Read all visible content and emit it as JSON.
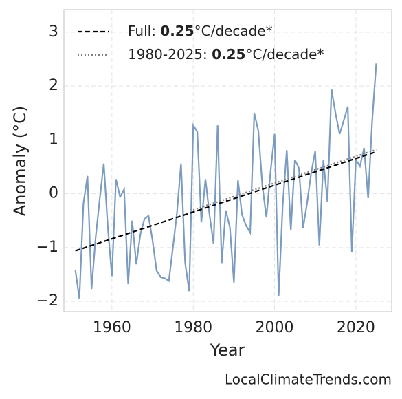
{
  "chart_data": {
    "type": "line",
    "xlabel": "Year",
    "ylabel": "Anomaly (°C)",
    "source": "LocalClimateTrends.com",
    "xlim": [
      1948.2,
      2028.8
    ],
    "ylim": [
      -2.19,
      3.42
    ],
    "xticks": [
      1960,
      1980,
      2000,
      2020
    ],
    "yticks": [
      {
        "value": -2,
        "label": "−2"
      },
      {
        "value": -1,
        "label": "−1"
      },
      0,
      1,
      2,
      3
    ],
    "grid": true,
    "legend": "upper left",
    "series": [
      {
        "color": "#7b9cc0",
        "style": "solid",
        "x": [
          1951,
          1952,
          1953,
          1954,
          1955,
          1956,
          1957,
          1958,
          1959,
          1960,
          1961,
          1962,
          1963,
          1964,
          1965,
          1966,
          1967,
          1968,
          1969,
          1970,
          1971,
          1972,
          1973,
          1974,
          1975,
          1976,
          1977,
          1978,
          1979,
          1980,
          1981,
          1982,
          1983,
          1984,
          1985,
          1986,
          1987,
          1988,
          1989,
          1990,
          1991,
          1992,
          1993,
          1994,
          1995,
          1996,
          1997,
          1998,
          1999,
          2000,
          2001,
          2002,
          2003,
          2004,
          2005,
          2006,
          2007,
          2008,
          2009,
          2010,
          2011,
          2012,
          2013,
          2014,
          2015,
          2016,
          2017,
          2018,
          2019,
          2020,
          2021,
          2022,
          2023,
          2024,
          2025
        ],
        "values": [
          -1.41,
          -1.95,
          -0.18,
          0.33,
          -1.77,
          -0.81,
          -0.1,
          0.56,
          -0.62,
          -1.53,
          0.27,
          -0.06,
          0.08,
          -1.68,
          -0.5,
          -1.31,
          -0.75,
          -0.47,
          -0.41,
          -0.87,
          -1.43,
          -1.55,
          -1.57,
          -1.62,
          -1.0,
          -0.36,
          0.56,
          -1.28,
          -1.81,
          1.27,
          1.15,
          -0.53,
          0.27,
          -0.39,
          -0.93,
          1.27,
          -1.3,
          -0.31,
          -0.62,
          -1.65,
          0.25,
          -0.39,
          -0.59,
          -0.72,
          1.5,
          1.17,
          0.15,
          -0.44,
          0.4,
          1.11,
          -1.9,
          -0.21,
          0.81,
          -0.68,
          0.63,
          0.47,
          -0.64,
          -0.17,
          0.38,
          0.79,
          -0.96,
          0.62,
          -0.15,
          1.94,
          1.49,
          1.11,
          1.36,
          1.62,
          -1.09,
          0.63,
          0.51,
          0.85,
          -0.08,
          1.36,
          2.42
        ]
      },
      {
        "name": "Full:",
        "rate": 0.25,
        "rate_unit": "°C/decade*",
        "color": "#000000",
        "style": "dashed",
        "x": [
          1951,
          2025
        ],
        "values": [
          -1.06,
          0.78
        ]
      },
      {
        "name": "1980-2025:",
        "rate": 0.25,
        "rate_unit": "°C/decade*",
        "color": "#808080",
        "style": "dotted",
        "x": [
          1980,
          2025
        ],
        "values": [
          -0.3,
          0.82
        ]
      }
    ]
  }
}
